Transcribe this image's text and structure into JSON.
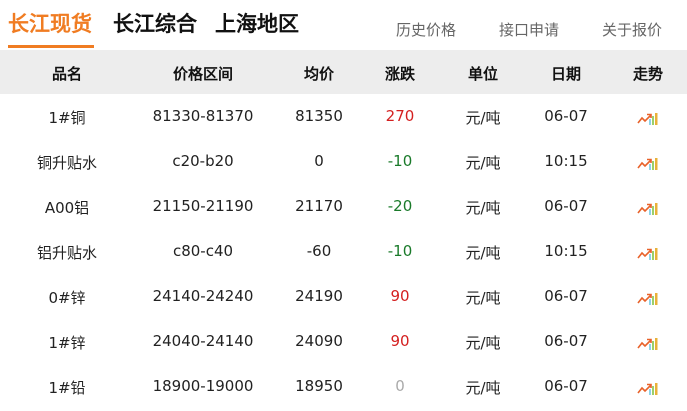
{
  "tabs": [
    {
      "label": "长江现货",
      "active": true
    },
    {
      "label": "长江综合"
    },
    {
      "label": "上海地区"
    }
  ],
  "links": [
    "历史价格",
    "接口申请",
    "关于报价"
  ],
  "accent": "#f07c22",
  "columns": [
    "品名",
    "价格区间",
    "均价",
    "涨跌",
    "单位",
    "日期",
    "走势"
  ],
  "rows": [
    {
      "name": "1#铜",
      "range": "81330-81370",
      "avg": "81350",
      "change": "270",
      "dir": "up",
      "unit": "元/吨",
      "date": "06-07"
    },
    {
      "name": "铜升贴水",
      "range": "c20-b20",
      "avg": "0",
      "change": "-10",
      "dir": "down",
      "unit": "元/吨",
      "date": "10:15"
    },
    {
      "name": "A00铝",
      "range": "21150-21190",
      "avg": "21170",
      "change": "-20",
      "dir": "down",
      "unit": "元/吨",
      "date": "06-07"
    },
    {
      "name": "铝升贴水",
      "range": "c80-c40",
      "avg": "-60",
      "change": "-10",
      "dir": "down",
      "unit": "元/吨",
      "date": "10:15"
    },
    {
      "name": "0#锌",
      "range": "24140-24240",
      "avg": "24190",
      "change": "90",
      "dir": "up",
      "unit": "元/吨",
      "date": "06-07"
    },
    {
      "name": "1#锌",
      "range": "24040-24140",
      "avg": "24090",
      "change": "90",
      "dir": "up",
      "unit": "元/吨",
      "date": "06-07"
    },
    {
      "name": "1#铅",
      "range": "18900-19000",
      "avg": "18950",
      "change": "0",
      "dir": "flat",
      "unit": "元/吨",
      "date": "06-07"
    }
  ],
  "trend_icon": "trend-chart-icon"
}
